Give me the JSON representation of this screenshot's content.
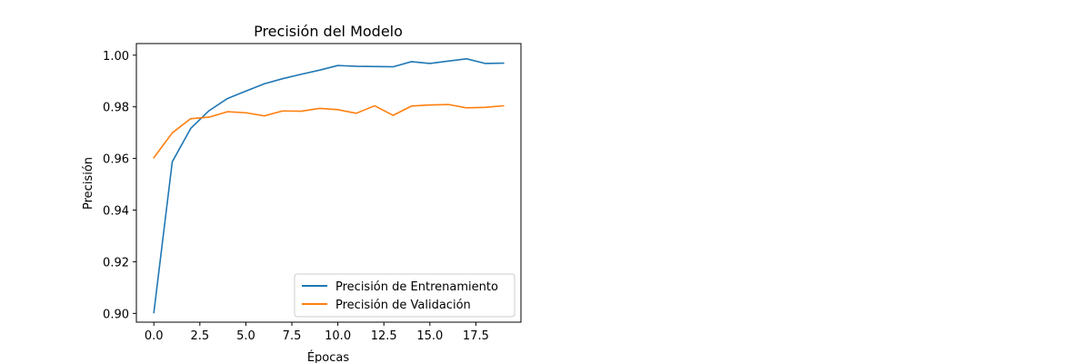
{
  "chart_data": {
    "type": "line",
    "title": "Precisión del Modelo",
    "xlabel": "Épocas",
    "ylabel": "Precisión",
    "x": [
      0,
      1,
      2,
      3,
      4,
      5,
      6,
      7,
      8,
      9,
      10,
      11,
      12,
      13,
      14,
      15,
      16,
      17,
      18,
      19
    ],
    "xlim": [
      -0.95,
      19.95
    ],
    "ylim": [
      0.8966,
      1.0045
    ],
    "x_ticks": [
      0,
      2.5,
      5,
      7.5,
      10,
      12.5,
      15,
      17.5
    ],
    "x_tick_labels": [
      "0.0",
      "2.5",
      "5.0",
      "7.5",
      "10.0",
      "12.5",
      "15.0",
      "17.5"
    ],
    "y_ticks": [
      0.9,
      0.92,
      0.94,
      0.96,
      0.98,
      1.0
    ],
    "y_tick_labels": [
      "0.90",
      "0.92",
      "0.94",
      "0.96",
      "0.98",
      "1.00"
    ],
    "grid": false,
    "legend_position": "lower-right",
    "series": [
      {
        "name": "Precisión de Entrenamiento",
        "color": "#1f77b4",
        "values": [
          0.9003,
          0.9587,
          0.9716,
          0.9785,
          0.9832,
          0.9861,
          0.9889,
          0.9909,
          0.9926,
          0.9942,
          0.996,
          0.9957,
          0.9956,
          0.9955,
          0.9975,
          0.9968,
          0.9977,
          0.9986,
          0.9968,
          0.9969
        ]
      },
      {
        "name": "Precisión de Validación",
        "color": "#ff7f0e",
        "values": [
          0.9603,
          0.9699,
          0.9754,
          0.976,
          0.9781,
          0.9777,
          0.9765,
          0.9784,
          0.9783,
          0.9794,
          0.9789,
          0.9775,
          0.9804,
          0.9767,
          0.9803,
          0.9807,
          0.9809,
          0.9796,
          0.9798,
          0.9804
        ]
      }
    ]
  }
}
